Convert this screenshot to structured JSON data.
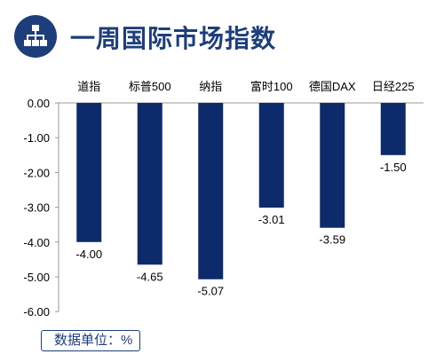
{
  "header": {
    "title": "一周国际市场指数",
    "icon": "hierarchy-icon",
    "accent_color": "#1e3e7b"
  },
  "unit_note": "数据单位：%",
  "chart_data": {
    "type": "bar",
    "title": "一周国际市场指数",
    "categories": [
      "道指",
      "标普500",
      "纳指",
      "富时100",
      "德国DAX",
      "日经225"
    ],
    "values": [
      -4.0,
      -4.65,
      -5.07,
      -3.01,
      -3.59,
      -1.5
    ],
    "value_labels": [
      "-4.00",
      "-4.65",
      "-5.07",
      "-3.01",
      "-3.59",
      "-1.50"
    ],
    "yticks": [
      "0.00",
      "-1.00",
      "-2.00",
      "-3.00",
      "-4.00",
      "-5.00",
      "-6.00"
    ],
    "ylim": [
      -6,
      0
    ],
    "xlabel": "",
    "ylabel": "",
    "bar_color": "#0d2a6b",
    "grid": false,
    "category_axis_position": "top"
  }
}
